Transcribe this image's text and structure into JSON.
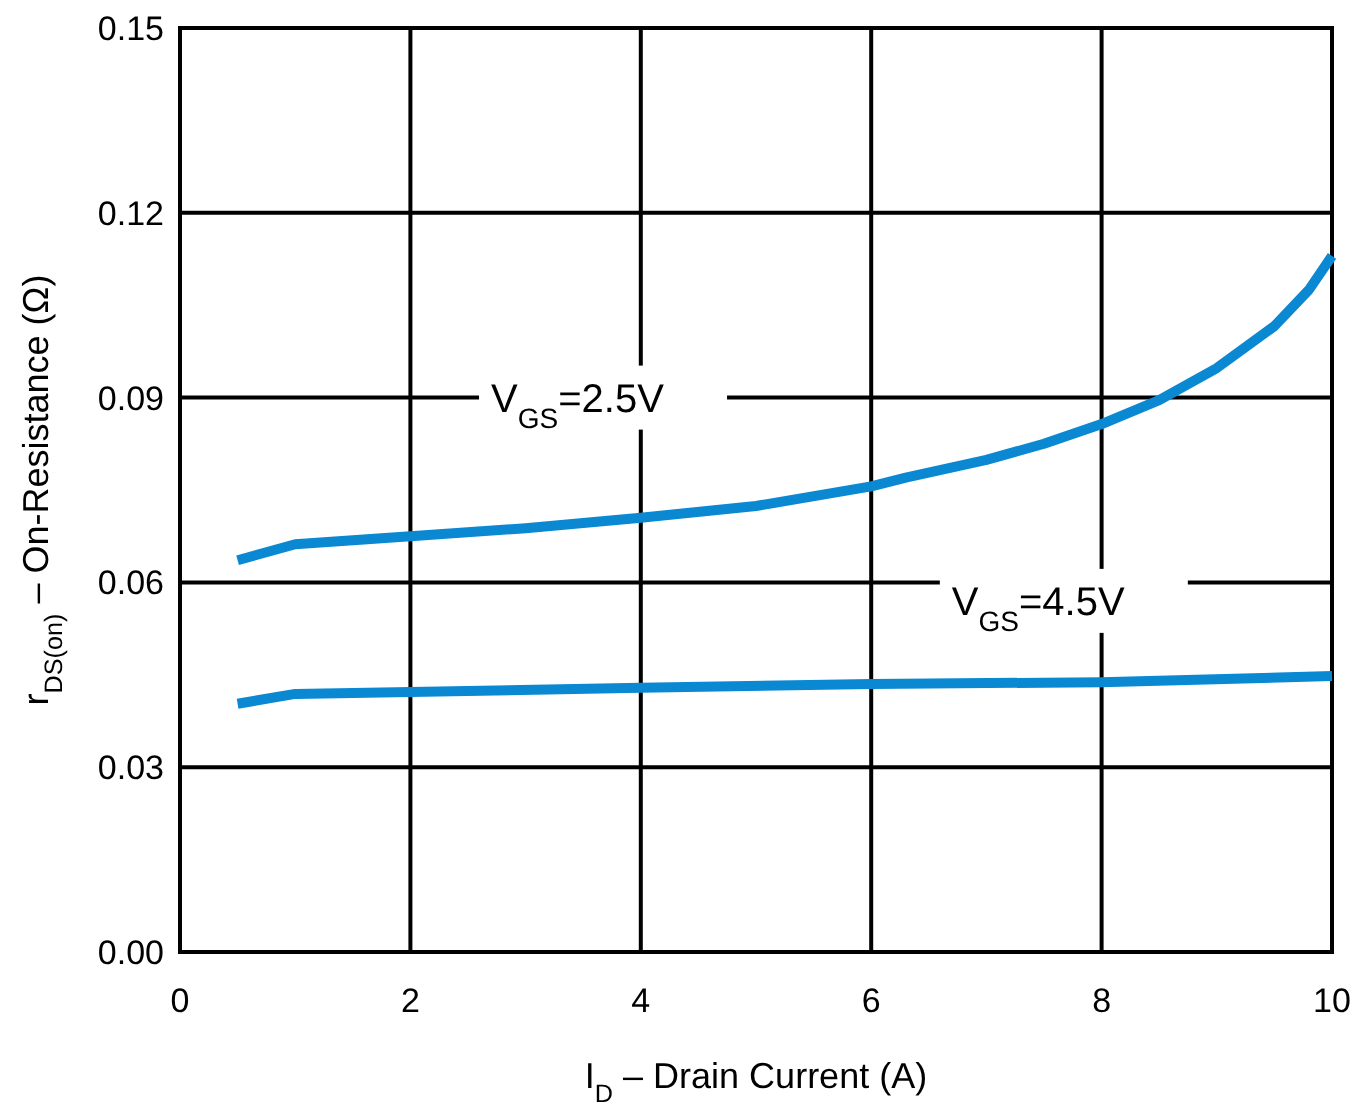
{
  "chart_data": {
    "type": "line",
    "xlabel": "I$_{D}$ – Drain Current (A)",
    "ylabel": "r$_{DS(on)}$ – On-Resistance (Ω)",
    "xlim": [
      0,
      10
    ],
    "xticks": [
      0,
      2,
      4,
      6,
      8,
      10
    ],
    "ylim": [
      0,
      0.15
    ],
    "yticks": [
      {
        "value": 0,
        "label": "0.00"
      },
      0.03,
      0.06,
      0.09,
      0.12,
      0.15
    ],
    "grid": true,
    "line_style": "solid",
    "marker": "none",
    "series": [
      {
        "name": "V$_{GS}$=2.5V",
        "color": "#0a88d2",
        "x": [
          0.5,
          1,
          2,
          3,
          4,
          5,
          6,
          6.3,
          7,
          7.5,
          8,
          8.5,
          9,
          9.5,
          9.8,
          10
        ],
        "values": [
          0.0636,
          0.0662,
          0.0675,
          0.0688,
          0.0705,
          0.0724,
          0.0756,
          0.077,
          0.0799,
          0.0825,
          0.0857,
          0.0896,
          0.0948,
          0.1016,
          0.1075,
          0.113
        ]
      },
      {
        "name": "V$_{GS}$=4.5V",
        "color": "#0a88d2",
        "x": [
          0.5,
          1,
          2,
          4,
          6,
          8,
          10
        ],
        "values": [
          0.0403,
          0.0419,
          0.0422,
          0.0429,
          0.0435,
          0.0438,
          0.0448
        ]
      }
    ]
  }
}
